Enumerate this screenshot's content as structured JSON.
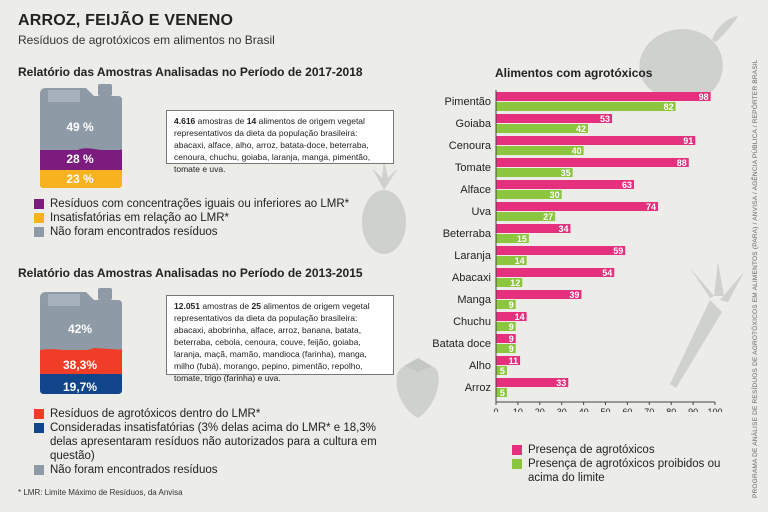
{
  "header": {
    "title": "ARROZ, FEIJÃO E VENENO",
    "subtitle": "Resíduos de agrotóxicos em alimentos no Brasil"
  },
  "report_2017": {
    "title": "Relatório das Amostras Analisadas no Período de 2017-2018",
    "pcts": [
      "49 %",
      "28 %",
      "23 %"
    ],
    "box": {
      "count": "4.616",
      "t1": " amostras de ",
      "foods": "14",
      "t2": " alimentos de origem vegetal representativos da dieta da população brasileira: abacaxi, alface, alho, arroz, batata-doce, beterraba, cenoura, chuchu, goiaba, laranja, manga, pimentão, tomate e uva."
    },
    "legend": [
      "Resíduos com concentrações iguais ou inferiores ao LMR*",
      "Insatisfatórias em relação ao LMR*",
      "Não foram encontrados resíduos"
    ]
  },
  "report_2013": {
    "title": "Relatório das Amostras Analisadas no Período de 2013-2015",
    "pcts": [
      "42%",
      "38,3%",
      "19,7%"
    ],
    "box": {
      "count": "12.051",
      "t1": " amostras de ",
      "foods": "25",
      "t2": " alimentos de origem vegetal representativos da dieta da população brasileira: abacaxi, abobrinha, alface, arroz, banana, batata, beterraba, cebola, cenoura, couve, feijão, goiaba, laranja, maçã, mamão, mandioca (farinha), manga, milho (fubá), morango, pepino, pimentão, repolho, tomate, trigo (farinha) e uva."
    },
    "legend": [
      "Resíduos de agrotóxicos dentro do LMR*",
      "Consideradas insatisfatórias (3% delas acima do LMR* e 18,3% delas apresentaram resíduos não autorizados para a cultura em questão)",
      "Não foram encontrados resíduos"
    ]
  },
  "footnote": "* LMR: Limite Máximo de Resíduos, da Anvisa",
  "credit": "PROGRAMA DE ANÁLISE DE RESÍDUOS DE AGROTÓXICOS EM ALIMENTOS (PARA) / ANVISA / AGÊNCIA PÚBLICA / REPÓRTER BRASIL",
  "colors": {
    "purple": "#7b1c7e",
    "orange": "#f7b21e",
    "gray": "#8e9aa6",
    "red": "#ef3d27",
    "blue": "#12468a",
    "magenta": "#e5307e",
    "green": "#8cc63f"
  },
  "chart_data": [
    {
      "type": "stacked-bar",
      "title": "Relatório das Amostras Analisadas no Período de 2017-2018",
      "series": [
        {
          "name": "Não foram encontrados resíduos",
          "value": 49
        },
        {
          "name": "Resíduos com concentrações iguais ou inferiores ao LMR*",
          "value": 28
        },
        {
          "name": "Insatisfatórias em relação ao LMR*",
          "value": 23
        }
      ]
    },
    {
      "type": "stacked-bar",
      "title": "Relatório das Amostras Analisadas no Período de 2013-2015",
      "series": [
        {
          "name": "Não foram encontrados resíduos",
          "value": 42
        },
        {
          "name": "Resíduos de agrotóxicos dentro do LMR*",
          "value": 38.3
        },
        {
          "name": "Consideradas insatisfatórias",
          "value": 19.7
        }
      ]
    },
    {
      "type": "bar",
      "orientation": "horizontal",
      "title": "Alimentos com agrotóxicos",
      "categories": [
        "Pimentão",
        "Goiaba",
        "Cenoura",
        "Tomate",
        "Alface",
        "Uva",
        "Beterraba",
        "Laranja",
        "Abacaxi",
        "Manga",
        "Chuchu",
        "Batata doce",
        "Alho",
        "Arroz"
      ],
      "series": [
        {
          "name": "Presença de agrotóxicos",
          "color": "#e5307e",
          "values": [
            98,
            53,
            91,
            88,
            63,
            74,
            34,
            59,
            54,
            39,
            14,
            9,
            11,
            33
          ]
        },
        {
          "name": "Presença de agrotóxicos proibidos ou acima do limite",
          "color": "#8cc63f",
          "values": [
            82,
            42,
            40,
            35,
            30,
            27,
            15,
            14,
            12,
            9,
            9,
            9,
            5,
            5
          ]
        }
      ],
      "xlim": [
        0,
        100
      ],
      "xticks": [
        0,
        10,
        20,
        30,
        40,
        50,
        60,
        70,
        80,
        90,
        100
      ],
      "legend": "bottom"
    }
  ]
}
